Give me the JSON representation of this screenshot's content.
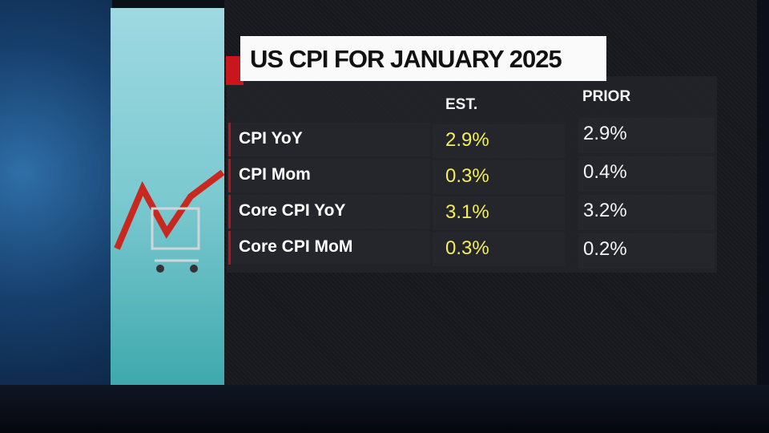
{
  "header": {
    "title": "US CPI FOR JANUARY 2025"
  },
  "table": {
    "columns": [
      "EST.",
      "PRIOR"
    ],
    "rows": [
      {
        "label": "CPI YoY",
        "est": "2.9%",
        "prior": "2.9%"
      },
      {
        "label": "CPI Mom",
        "est": "0.3%",
        "prior": "0.4%"
      },
      {
        "label": "Core CPI YoY",
        "est": "3.1%",
        "prior": "3.2%"
      },
      {
        "label": "Core CPI MoM",
        "est": "0.3%",
        "prior": "0.2%"
      }
    ]
  }
}
